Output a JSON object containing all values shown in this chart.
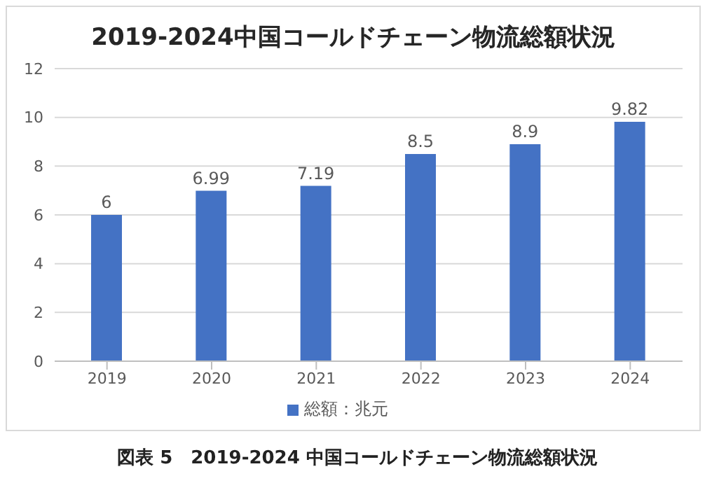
{
  "chart_data": {
    "type": "bar",
    "title": "2019-2024中国コールドチェーン物流総額状況",
    "categories": [
      "2019",
      "2020",
      "2021",
      "2022",
      "2023",
      "2024"
    ],
    "series": [
      {
        "name": "総額：兆元",
        "color": "#4472c4",
        "values": [
          6,
          6.99,
          7.19,
          8.5,
          8.9,
          9.82
        ]
      }
    ],
    "ylim": [
      0,
      12
    ],
    "yticks": [
      0,
      2,
      4,
      6,
      8,
      10,
      12
    ],
    "grid": "y",
    "legend": "bottom",
    "data_labels": true,
    "annotations": [
      "図表 5　2019-2024 中国コールドチェーン物流総額状況"
    ]
  }
}
